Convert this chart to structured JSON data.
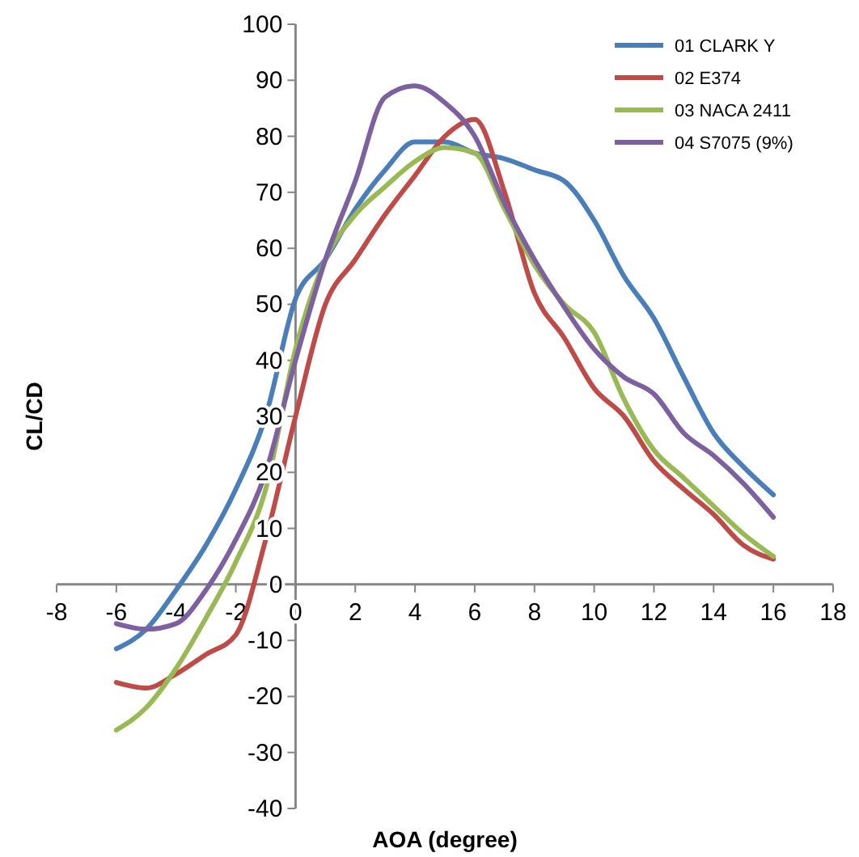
{
  "chart_data": {
    "type": "line",
    "xlabel": "AOA (degree)",
    "ylabel": "CL/CD",
    "x": [
      -6,
      -5,
      -4,
      -3,
      -2,
      -1,
      0,
      1,
      2,
      3,
      4,
      5,
      6,
      7,
      8,
      9,
      10,
      11,
      12,
      13,
      14,
      15,
      16
    ],
    "xlim": [
      -8,
      18
    ],
    "xticks": [
      -8,
      -6,
      -4,
      -2,
      0,
      2,
      4,
      6,
      8,
      10,
      12,
      14,
      16,
      18
    ],
    "ylim": [
      -40,
      100
    ],
    "yticks": [
      -40,
      -30,
      -20,
      -10,
      0,
      10,
      20,
      30,
      40,
      50,
      60,
      70,
      80,
      90,
      100
    ],
    "grid": false,
    "legend": "top right",
    "marker": "none",
    "line_style": "solid",
    "series": [
      {
        "name": "01 CLARK Y",
        "color": "#4a7ebb",
        "values": [
          -11.5,
          -8,
          -1,
          7,
          17,
          30,
          51,
          58,
          67,
          74,
          79,
          79,
          77,
          76,
          74,
          72,
          65,
          55,
          47.5,
          37,
          27,
          21,
          16
        ]
      },
      {
        "name": "02 E374",
        "color": "#be4b48",
        "values": [
          -17.5,
          -18.5,
          -16,
          -12.5,
          -9,
          8,
          30,
          50,
          58,
          66,
          73,
          80,
          83,
          70,
          52,
          44,
          35,
          30,
          22,
          17,
          12.5,
          7,
          4.5
        ]
      },
      {
        "name": "03 NACA 2411",
        "color": "#98b954",
        "values": [
          -26,
          -22,
          -15,
          -6,
          4,
          17,
          42,
          58,
          66,
          71,
          75.5,
          78,
          77,
          67,
          57,
          50,
          45,
          33,
          24,
          19,
          14,
          9,
          5
        ]
      },
      {
        "name": "04 S7075 (9%)",
        "color": "#7d60a0",
        "values": [
          -7,
          -8,
          -7,
          -1,
          8,
          20,
          40,
          58,
          72,
          87,
          89,
          86,
          80,
          68,
          58,
          49.5,
          42,
          37,
          34,
          27,
          23,
          18,
          12
        ]
      }
    ]
  }
}
